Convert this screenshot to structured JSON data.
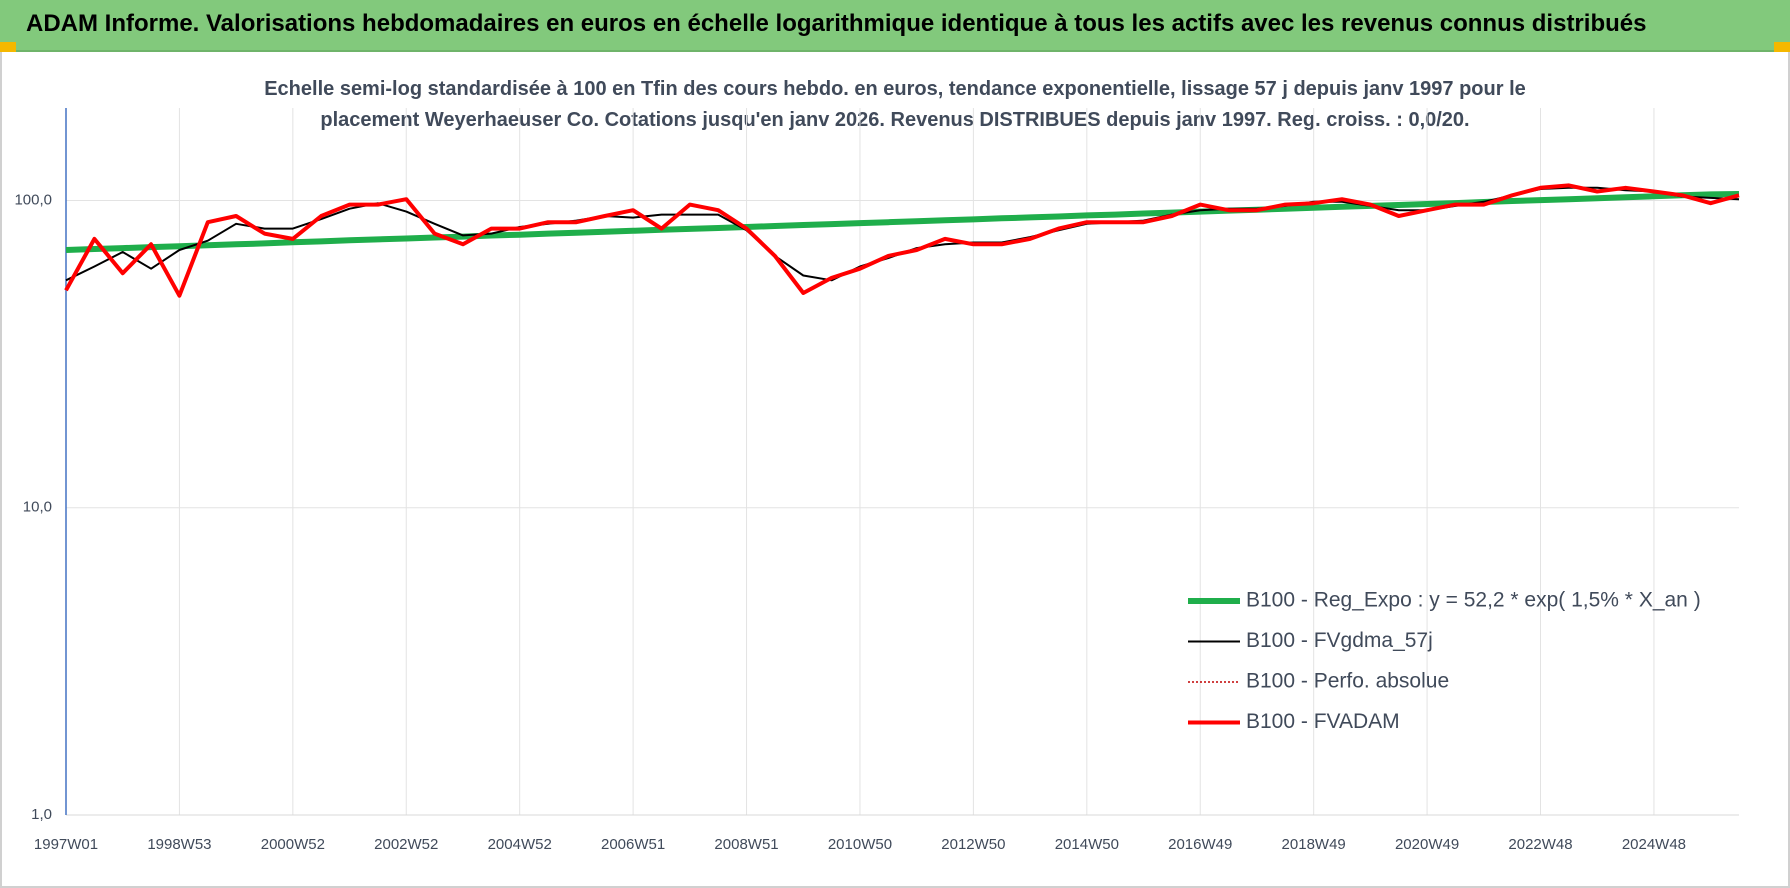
{
  "header": {
    "title": "ADAM Informe. Valorisations hebdomadaires en euros en échelle logarithmique identique à tous les actifs avec les revenus connus distribués"
  },
  "chart_data": {
    "type": "line",
    "title": "Echelle semi-log standardisée à 100 en Tfin des cours hebdo. en euros, tendance exponentielle, lissage 57 j depuis janv 1997 pour le placement Weyerhaeuser Co. Cotations jusqu'en janv 2026. Revenus DISTRIBUES depuis janv 1997. Reg. croiss. : 0,0/20.",
    "yscale": "log",
    "ylim": [
      1,
      200
    ],
    "yticks": [
      {
        "value": 1,
        "label": "1,0"
      },
      {
        "value": 10,
        "label": "10,0"
      },
      {
        "value": 100,
        "label": "100,0"
      }
    ],
    "grid": true,
    "legend": "right",
    "categories": [
      "1997W01",
      null,
      null,
      null,
      "1998W53",
      null,
      null,
      null,
      "2000W52",
      null,
      null,
      null,
      "2002W52",
      null,
      null,
      null,
      "2004W52",
      null,
      null,
      null,
      "2006W51",
      null,
      null,
      null,
      "2008W51",
      null,
      null,
      null,
      "2010W50",
      null,
      null,
      null,
      "2012W50",
      null,
      null,
      null,
      "2014W50",
      null,
      null,
      null,
      "2016W49",
      null,
      null,
      null,
      "2018W49",
      null,
      null,
      null,
      "2020W49",
      null,
      null,
      null,
      "2022W48",
      null,
      null,
      null,
      "2024W48",
      null,
      null,
      null
    ],
    "series": [
      {
        "name": "B100 - Reg_Expo : y = 52,2 * exp( 1,5% *  X_an )",
        "color": "#1fae4b",
        "width": 6,
        "dash": null,
        "values": [
          69.0,
          69.5,
          70.0,
          70.5,
          71.0,
          71.5,
          72.0,
          72.5,
          73.1,
          73.6,
          74.2,
          74.7,
          75.2,
          75.8,
          76.3,
          76.9,
          77.4,
          78.0,
          78.5,
          79.1,
          79.7,
          80.3,
          80.8,
          81.4,
          82.0,
          82.6,
          83.2,
          83.8,
          84.4,
          85.0,
          85.6,
          86.2,
          86.8,
          87.5,
          88.1,
          88.7,
          89.4,
          90.0,
          90.7,
          91.3,
          92.0,
          92.7,
          93.3,
          94.0,
          94.7,
          95.4,
          96.0,
          96.7,
          97.4,
          98.1,
          98.9,
          99.6,
          100.3,
          101.0,
          101.7,
          102.5,
          103.2,
          104.0,
          104.7,
          105.0
        ]
      },
      {
        "name": "B100 - FVgdma_57j",
        "color": "#000000",
        "width": 2,
        "dash": null,
        "values": [
          55,
          61,
          68,
          60,
          69,
          74,
          84,
          81,
          81,
          87,
          94,
          98,
          92,
          84,
          77,
          78,
          82,
          84,
          86,
          89,
          88,
          90,
          90,
          90,
          80,
          66,
          57,
          55,
          61,
          65,
          70,
          72,
          73,
          73,
          76,
          80,
          84,
          85,
          86,
          90,
          93,
          94,
          94,
          96,
          99,
          99,
          96,
          93,
          93,
          96,
          99,
          104,
          109,
          110,
          110,
          108,
          107,
          103,
          102,
          101
        ]
      },
      {
        "name": "B100 - Perfo. absolue",
        "color": "#c00000",
        "width": 1.5,
        "dash": "2 2",
        "values": [
          51,
          75,
          58,
          72,
          49,
          85,
          89,
          78,
          75,
          89,
          97,
          97,
          101,
          78,
          72,
          81,
          81,
          85,
          85,
          89,
          93,
          81,
          97,
          93,
          81,
          66,
          50,
          56,
          60,
          66,
          69,
          75,
          72,
          72,
          75,
          81,
          85,
          85,
          85,
          89,
          97,
          93,
          93,
          97,
          98,
          101,
          97,
          89,
          93,
          97,
          97,
          104,
          110,
          112,
          107,
          110,
          107,
          104,
          98,
          104
        ]
      },
      {
        "name": "B100 - FVADAM",
        "color": "#ff0000",
        "width": 4,
        "dash": null,
        "values": [
          51,
          75,
          58,
          72,
          49,
          85,
          89,
          78,
          75,
          89,
          97,
          97,
          101,
          78,
          72,
          81,
          81,
          85,
          85,
          89,
          93,
          81,
          97,
          93,
          81,
          66,
          50,
          56,
          60,
          66,
          69,
          75,
          72,
          72,
          75,
          81,
          85,
          85,
          85,
          89,
          97,
          93,
          93,
          97,
          98,
          101,
          97,
          89,
          93,
          97,
          97,
          104,
          110,
          112,
          107,
          110,
          107,
          104,
          98,
          104
        ]
      }
    ]
  }
}
